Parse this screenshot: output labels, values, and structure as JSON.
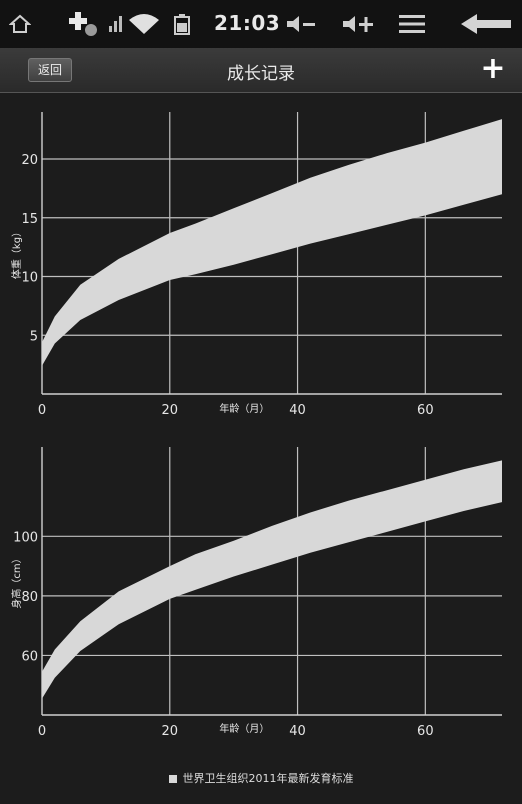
{
  "status_bar": {
    "time": "21:03",
    "icons": [
      "home-icon",
      "add-usb-icon",
      "signal-icon",
      "wifi-icon",
      "battery-icon",
      "volume-down-icon",
      "volume-up-icon",
      "menu-icon",
      "back-arrow-icon"
    ]
  },
  "header": {
    "back_label": "返回",
    "title": "成长记录",
    "add_label": "+"
  },
  "chart_data": [
    {
      "type": "area",
      "title": "",
      "xlabel": "年龄（月）",
      "ylabel": "体重（kg）",
      "xlim": [
        0,
        72
      ],
      "ylim": [
        0,
        24
      ],
      "x_ticks": [
        0,
        20,
        40,
        60
      ],
      "y_ticks": [
        5,
        10,
        15,
        20
      ],
      "grid": true,
      "series": [
        {
          "x": [
            0,
            2,
            6,
            12,
            20,
            24,
            30,
            36,
            42,
            48,
            54,
            60,
            66,
            72
          ],
          "lower": [
            2.4,
            4.3,
            6.3,
            8.0,
            9.7,
            10.2,
            11.0,
            11.9,
            12.8,
            13.6,
            14.4,
            15.2,
            16.1,
            17.0
          ],
          "upper": [
            4.4,
            6.6,
            9.3,
            11.5,
            13.7,
            14.5,
            15.8,
            17.1,
            18.4,
            19.5,
            20.5,
            21.4,
            22.4,
            23.4
          ]
        }
      ]
    },
    {
      "type": "area",
      "title": "",
      "xlabel": "年龄（月）",
      "ylabel": "身高（cm）",
      "xlim": [
        0,
        72
      ],
      "ylim": [
        40,
        130
      ],
      "x_ticks": [
        0,
        20,
        40,
        60
      ],
      "y_ticks": [
        60,
        80,
        100
      ],
      "grid": true,
      "series": [
        {
          "x": [
            0,
            2,
            6,
            12,
            20,
            24,
            30,
            36,
            42,
            48,
            54,
            60,
            66,
            72
          ],
          "lower": [
            45.5,
            52.5,
            61.5,
            70.5,
            79.0,
            82.0,
            86.5,
            90.5,
            94.5,
            98.0,
            101.5,
            105.0,
            108.5,
            111.5
          ],
          "upper": [
            54.5,
            62.0,
            71.5,
            81.5,
            90.0,
            94.0,
            98.5,
            103.5,
            108.0,
            112.0,
            115.5,
            119.0,
            122.5,
            125.5
          ]
        }
      ]
    }
  ],
  "legend": {
    "label": "世界卫生组织2011年最新发育标准",
    "color": "#d8d8d8"
  },
  "colors": {
    "background": "#1c1c1c",
    "band_fill": "#d8d8d8",
    "grid": "#bfbfbf",
    "text": "#e6e6e6"
  }
}
